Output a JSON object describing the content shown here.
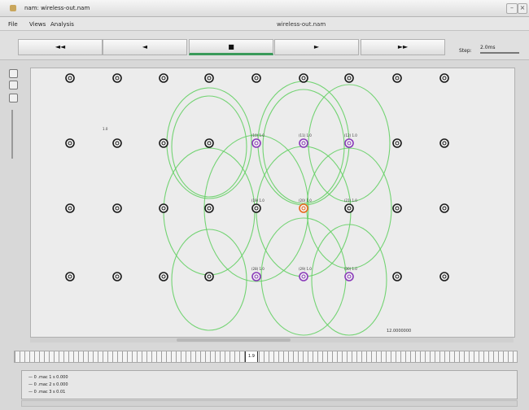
{
  "window": {
    "title": "nam: wireless-out.nam"
  },
  "menu": {
    "items": [
      "File",
      "Views",
      "Analysis"
    ],
    "file_name": "wireless-out.nam"
  },
  "toolbar": {
    "buttons": [
      {
        "label": "◄◄",
        "name": "rewind-button"
      },
      {
        "label": "◄",
        "name": "play-backward-button"
      },
      {
        "label": "■",
        "name": "stop-button"
      },
      {
        "label": "►",
        "name": "play-forward-button"
      },
      {
        "label": "►►",
        "name": "fast-forward-button"
      }
    ],
    "step_label": "Step:",
    "step_value": "2.0ms"
  },
  "timeline": {
    "marker_label": "1.9"
  },
  "canvas": {
    "annotation": "12.0000000",
    "mouse_label": "1.0",
    "nodes": [
      {
        "label": ""
      },
      {
        "label": ""
      },
      {
        "label": ""
      },
      {
        "label": ""
      },
      {
        "label": ""
      },
      {
        "label": ""
      },
      {
        "label": ""
      },
      {
        "label": ""
      },
      {
        "label": ""
      },
      {
        "label": ""
      },
      {
        "label": ""
      },
      {
        "label": ""
      },
      {
        "label": ""
      },
      {
        "label": "(10) 1.0"
      },
      {
        "label": "(11) 1.0"
      },
      {
        "label": "(12) 1.0"
      },
      {
        "label": ""
      },
      {
        "label": ""
      },
      {
        "label": ""
      },
      {
        "label": ""
      },
      {
        "label": ""
      },
      {
        "label": ""
      },
      {
        "label": "(19) 1.0"
      },
      {
        "label": "(20) 1.0"
      },
      {
        "label": "(21) 1.0"
      },
      {
        "label": ""
      },
      {
        "label": ""
      },
      {
        "label": ""
      },
      {
        "label": ""
      },
      {
        "label": ""
      },
      {
        "label": ""
      },
      {
        "label": "(28) 1.0"
      },
      {
        "label": "(29) 1.0"
      },
      {
        "label": "(30) 1.0"
      },
      {
        "label": ""
      },
      {
        "label": ""
      }
    ],
    "colors": {
      "default": "#1a1a1a",
      "purple": "#8a3ab9",
      "orange": "#e8661b",
      "range": "#5ecf5e"
    }
  },
  "log": {
    "lines": [
      "— 0 .mac 1 s 0.000",
      "— 0 .mac 2 s 0.000",
      "— 0 .mac 3 s 0.01"
    ]
  }
}
